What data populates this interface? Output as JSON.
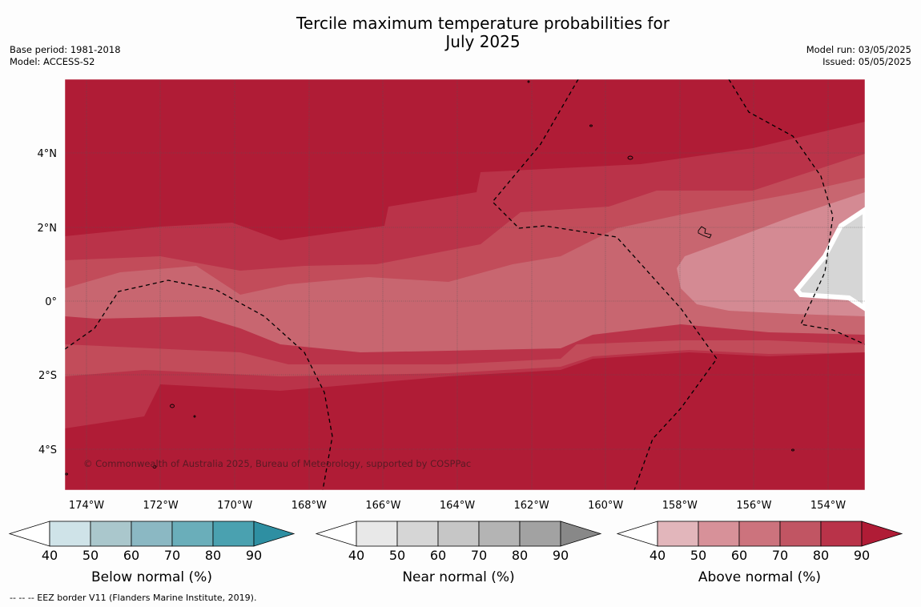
{
  "title": {
    "line1": "Tercile maximum temperature probabilities for",
    "line2": "July 2025"
  },
  "meta_left": {
    "base_period": "Base period: 1981-2018",
    "model": "Model: ACCESS-S2"
  },
  "meta_right": {
    "model_run": "Model run: 03/05/2025",
    "issued": "Issued: 05/05/2025"
  },
  "map": {
    "lat_labels": [
      "4°N",
      "2°N",
      "0°",
      "2°S",
      "4°S"
    ],
    "lon_labels": [
      "174°W",
      "172°W",
      "170°W",
      "168°W",
      "166°W",
      "164°W",
      "162°W",
      "160°W",
      "158°W",
      "156°W",
      "154°W"
    ],
    "copyright": "© Commonwealth of Australia 2025, Bureau of Meteorology, supported by COSPPac"
  },
  "colorbars": [
    {
      "title": "Below normal (%)",
      "ticks": [
        "40",
        "50",
        "60",
        "70",
        "80",
        "90"
      ],
      "colors": [
        "#cfe3e8",
        "#aac7cc",
        "#8bb8c3",
        "#6aaeba",
        "#4aa1b0"
      ],
      "arrow": "#2e8fa2"
    },
    {
      "title": "Near normal (%)",
      "ticks": [
        "40",
        "50",
        "60",
        "70",
        "80",
        "90"
      ],
      "colors": [
        "#e8e8e8",
        "#d6d6d6",
        "#c6c6c6",
        "#b4b4b4",
        "#a2a2a2"
      ],
      "arrow": "#888888"
    },
    {
      "title": "Above normal (%)",
      "ticks": [
        "40",
        "50",
        "60",
        "70",
        "80",
        "90"
      ],
      "colors": [
        "#e2b6bb",
        "#d79199",
        "#cc737d",
        "#c15563",
        "#b93349"
      ],
      "arrow": "#b01c36"
    }
  ],
  "footnote": "-- -- -- EEZ border V11 (Flanders Marine Institute, 2019).",
  "colors": {
    "above_90": "#b01c36",
    "above_80": "#ba3349",
    "above_70": "#c24c5a",
    "above_60": "#c86670",
    "above_50": "#d48a93",
    "near": "#d6d6d6"
  }
}
